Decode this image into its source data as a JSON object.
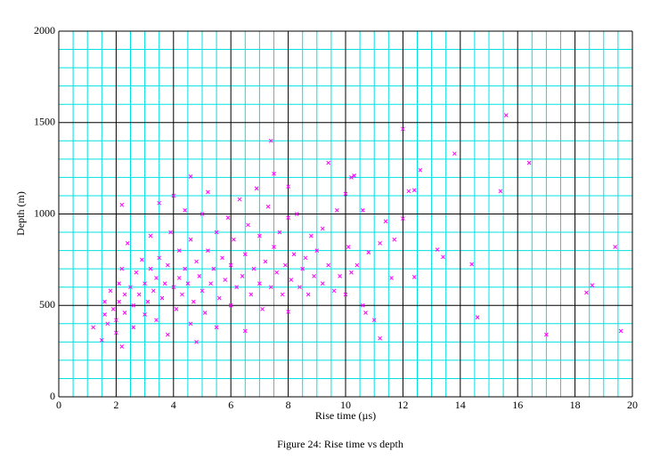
{
  "chart_data": {
    "type": "scatter",
    "caption": "Figure 24: Rise time vs depth",
    "x_label": "Rise time (µs)",
    "y_label": "Depth (m)",
    "color": "#ff00ff",
    "grid": true,
    "xlim": [
      0,
      20
    ],
    "xticks": [
      0,
      2,
      4,
      6,
      8,
      10,
      12,
      14,
      16,
      18,
      20
    ],
    "ylim": [
      0,
      2000
    ],
    "yticks": [
      0,
      500,
      1000,
      1500,
      2000
    ],
    "x": [
      12.0,
      15.6,
      13.8,
      16.4,
      15.4,
      12.6,
      12.4,
      12.2,
      12.0,
      17.0,
      19.6,
      19.4,
      18.6,
      18.4,
      14.6,
      14.4,
      13.4,
      13.2,
      11.2,
      11.0,
      12.4,
      11.6,
      7.4,
      7.5,
      9.4,
      10.0,
      10.2,
      10.3,
      2.2,
      4.6,
      2.2,
      1.2,
      1.5,
      10.6,
      8.0,
      8.0,
      1.6,
      1.6,
      1.7,
      1.8,
      1.9,
      2.0,
      2.0,
      2.1,
      2.1,
      2.2,
      2.3,
      2.3,
      2.4,
      2.5,
      2.6,
      2.6,
      2.7,
      2.8,
      2.9,
      3.0,
      3.0,
      3.1,
      3.2,
      3.2,
      3.3,
      3.4,
      3.4,
      3.5,
      3.5,
      3.6,
      3.7,
      3.8,
      3.8,
      3.9,
      4.0,
      4.0,
      4.1,
      4.2,
      4.2,
      4.3,
      4.4,
      4.4,
      4.5,
      4.6,
      4.6,
      4.7,
      4.8,
      4.8,
      4.9,
      5.0,
      5.0,
      5.1,
      5.2,
      5.2,
      5.3,
      5.4,
      5.5,
      5.5,
      5.6,
      5.7,
      5.8,
      5.9,
      6.0,
      6.0,
      6.1,
      6.2,
      6.3,
      6.4,
      6.5,
      6.5,
      6.6,
      6.7,
      6.8,
      6.9,
      7.0,
      7.0,
      7.1,
      7.2,
      7.3,
      7.4,
      7.5,
      7.6,
      7.7,
      7.8,
      7.9,
      8.0,
      8.1,
      8.2,
      8.3,
      8.4,
      8.5,
      8.6,
      8.7,
      8.8,
      8.9,
      9.0,
      9.2,
      9.2,
      9.4,
      9.6,
      9.7,
      9.8,
      10.0,
      10.1,
      10.2,
      10.4,
      10.6,
      10.7,
      10.8,
      11.2,
      11.4,
      11.7
    ],
    "values": [
      1465,
      1540,
      1330,
      1280,
      1125,
      1240,
      1130,
      1125,
      975,
      340,
      360,
      820,
      610,
      570,
      435,
      725,
      765,
      805,
      320,
      420,
      655,
      650,
      1400,
      1220,
      1280,
      1110,
      1200,
      1210,
      1050,
      1205,
      275,
      380,
      310,
      1020,
      1150,
      465,
      450,
      520,
      400,
      580,
      480,
      420,
      350,
      620,
      520,
      700,
      460,
      560,
      840,
      600,
      500,
      380,
      680,
      560,
      750,
      450,
      620,
      520,
      880,
      700,
      580,
      420,
      650,
      1060,
      760,
      540,
      620,
      340,
      720,
      900,
      1100,
      600,
      480,
      800,
      650,
      560,
      1020,
      700,
      620,
      400,
      860,
      520,
      300,
      740,
      660,
      1000,
      580,
      460,
      1120,
      800,
      620,
      700,
      380,
      900,
      540,
      760,
      640,
      980,
      500,
      720,
      860,
      600,
      1080,
      660,
      360,
      780,
      940,
      560,
      700,
      1140,
      620,
      880,
      480,
      740,
      1040,
      600,
      820,
      680,
      900,
      560,
      720,
      980,
      640,
      780,
      1000,
      600,
      700,
      760,
      560,
      880,
      660,
      800,
      920,
      620,
      720,
      580,
      1020,
      660,
      560,
      820,
      680,
      720,
      500,
      460,
      790,
      840,
      960,
      860
    ]
  }
}
